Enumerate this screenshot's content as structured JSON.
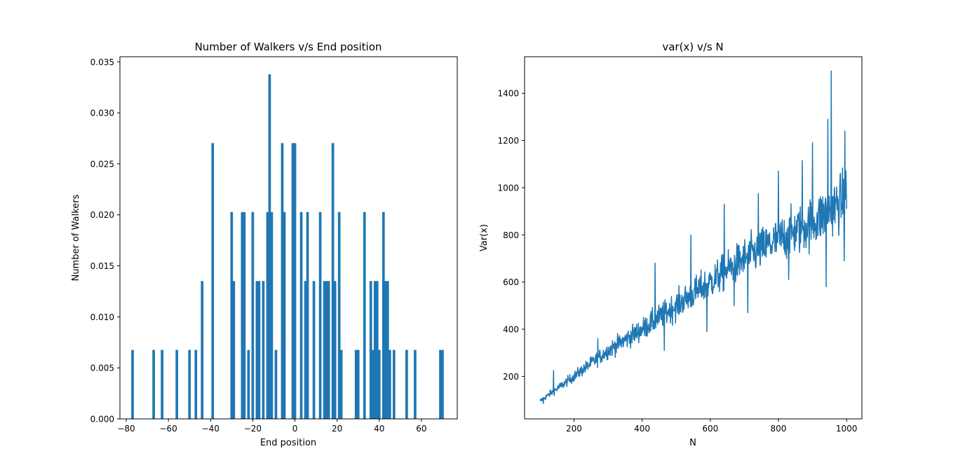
{
  "chart_data": [
    {
      "type": "bar",
      "title": "Number of Walkers v/s End position",
      "xlabel": "End position",
      "ylabel": "Number of Walkers",
      "xlim": [
        -83,
        77
      ],
      "ylim": [
        0,
        0.0355
      ],
      "xticks": [
        -80,
        -60,
        -40,
        -20,
        0,
        20,
        40,
        60
      ],
      "xtick_labels": [
        "−80",
        "−60",
        "−40",
        "−20",
        "0",
        "20",
        "40",
        "60"
      ],
      "yticks": [
        0,
        0.005,
        0.01,
        0.015,
        0.02,
        0.025,
        0.03,
        0.035
      ],
      "ytick_labels": [
        "0.000",
        "0.005",
        "0.010",
        "0.015",
        "0.020",
        "0.025",
        "0.030",
        "0.035"
      ],
      "bar_width": 1.23,
      "color": "#1f77b4",
      "x": [
        -77,
        -67,
        -63,
        -56,
        -50,
        -47,
        -44,
        -39,
        -30,
        -29,
        -25,
        -24,
        -22,
        -20,
        -18,
        -17,
        -15,
        -13,
        -12,
        -11,
        -9,
        -6,
        -5,
        -1,
        0,
        3,
        5,
        6,
        9,
        12,
        14,
        15,
        16,
        18,
        19,
        21,
        22,
        29,
        30,
        33,
        36,
        37,
        38,
        39,
        40,
        42,
        43,
        44,
        45,
        47,
        53,
        57,
        69,
        70
      ],
      "values": [
        0.00676,
        0.00676,
        0.00676,
        0.00676,
        0.00676,
        0.00676,
        0.01351,
        0.02703,
        0.02027,
        0.01351,
        0.02027,
        0.02027,
        0.00676,
        0.02027,
        0.01351,
        0.01351,
        0.01351,
        0.02027,
        0.03378,
        0.02027,
        0.00676,
        0.02703,
        0.02027,
        0.02703,
        0.02703,
        0.02027,
        0.01351,
        0.02027,
        0.01351,
        0.02027,
        0.01351,
        0.01351,
        0.01351,
        0.02703,
        0.01351,
        0.02027,
        0.00676,
        0.00676,
        0.00676,
        0.02027,
        0.01351,
        0.00676,
        0.01351,
        0.01351,
        0.00676,
        0.02027,
        0.01351,
        0.01351,
        0.00676,
        0.00676,
        0.00676,
        0.00676,
        0.00676,
        0.00676
      ]
    },
    {
      "type": "line",
      "title": "var(x) v/s N",
      "xlabel": "N",
      "ylabel": "Var(x)",
      "xlim": [
        55,
        1045
      ],
      "ylim": [
        20,
        1555
      ],
      "xticks": [
        200,
        400,
        600,
        800,
        1000
      ],
      "xtick_labels": [
        "200",
        "400",
        "600",
        "800",
        "1000"
      ],
      "yticks": [
        200,
        400,
        600,
        800,
        1000,
        1200,
        1400
      ],
      "ytick_labels": [
        "200",
        "400",
        "600",
        "800",
        "1000",
        "1200",
        "1400"
      ],
      "color": "#1f77b4",
      "x_range": [
        100,
        1000
      ],
      "trend": [
        [
          100,
          95
        ],
        [
          200,
          200
        ],
        [
          300,
          310
        ],
        [
          400,
          400
        ],
        [
          500,
          500
        ],
        [
          600,
          600
        ],
        [
          700,
          700
        ],
        [
          800,
          780
        ],
        [
          900,
          850
        ],
        [
          1000,
          960
        ]
      ],
      "noise_start": 10,
      "noise_end": 120,
      "peaks": [
        [
          140,
          225
        ],
        [
          270,
          360
        ],
        [
          438,
          680
        ],
        [
          543,
          800
        ],
        [
          641,
          930
        ],
        [
          741,
          975
        ],
        [
          800,
          1070
        ],
        [
          870,
          1115
        ],
        [
          900,
          1190
        ],
        [
          945,
          1290
        ],
        [
          955,
          1495
        ],
        [
          995,
          1240
        ]
      ],
      "troughs": [
        [
          110,
          85
        ],
        [
          465,
          310
        ],
        [
          590,
          390
        ],
        [
          670,
          500
        ],
        [
          710,
          470
        ],
        [
          830,
          610
        ],
        [
          940,
          580
        ],
        [
          993,
          690
        ]
      ]
    }
  ]
}
